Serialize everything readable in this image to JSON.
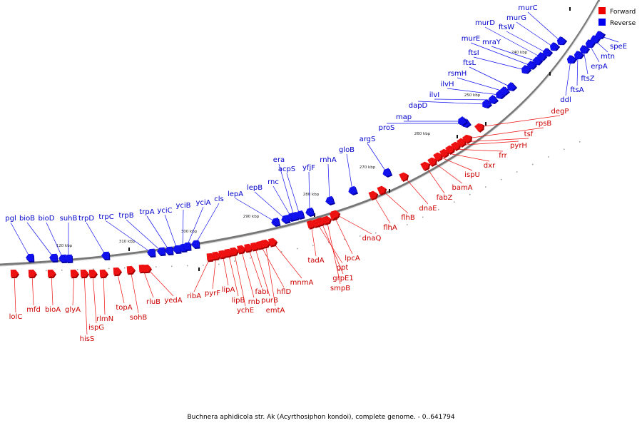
{
  "caption": "Buchnera aphidicola str. Ak (Acyrthosiphon kondoi), complete genome. - 0..641794",
  "legend": [
    {
      "label": "Forward",
      "color": "#ee0000"
    },
    {
      "label": "Reverse",
      "color": "#0000ee"
    }
  ],
  "ticks": [
    "120 kbp",
    "310 kbp",
    "300 kbp",
    "290 kbp",
    "280 kbp",
    "270 kbp",
    "260 kbp",
    "250 kbp",
    "240 kbp"
  ],
  "forward_genes": [
    "lolC",
    "mfd",
    "bioA",
    "glyA",
    "hisS",
    "ispG",
    "rlmN",
    "topA",
    "sohB",
    "rluB",
    "yedA",
    "ribA",
    "pyrF",
    "lipA",
    "lipB",
    "ychE",
    "rnb",
    "fabI",
    "purB",
    "hflD",
    "emtA",
    "mnmA",
    "tadA",
    "gpt",
    "grpE1",
    "smpB",
    "lpcA",
    "dnaQ",
    "flhA",
    "flhB",
    "dnaE",
    "fabZ",
    "bamA",
    "ispU",
    "dxr",
    "frr",
    "pyrH",
    "tsf",
    "rpsB",
    "degP"
  ],
  "reverse_genes": [
    "pgl",
    "bioB",
    "bioD",
    "suhB",
    "trpD",
    "trpC",
    "trpB",
    "trpA",
    "yciC",
    "yciB",
    "yciA",
    "cls",
    "lepA",
    "lepB",
    "rnc",
    "era",
    "acpS",
    "yfjF",
    "rnhA",
    "gloB",
    "argS",
    "proS",
    "map",
    "dapD",
    "ilvI",
    "ilvH",
    "rsmH",
    "ftsL",
    "ftsI",
    "murE",
    "mraY",
    "murD",
    "ftsW",
    "murG",
    "murC",
    "ddl",
    "ftsA",
    "ftsZ",
    "erpA",
    "mtn",
    "speE"
  ]
}
